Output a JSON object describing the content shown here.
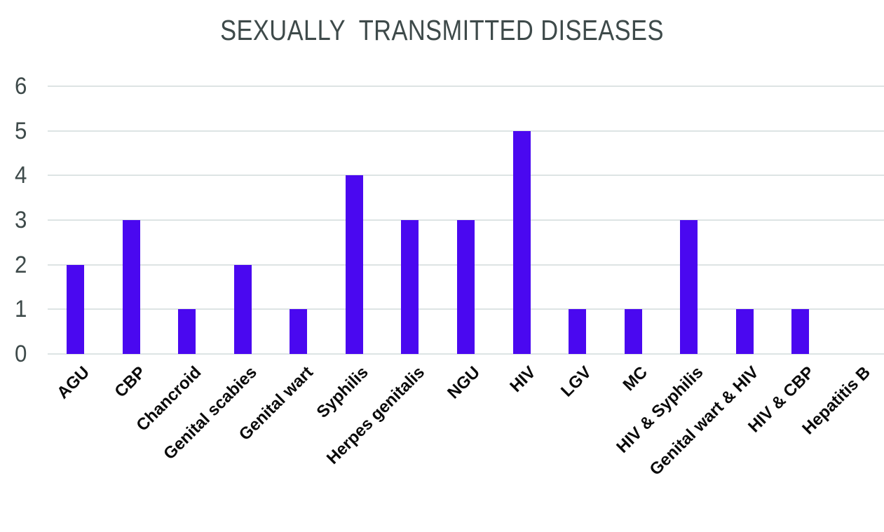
{
  "chart_data": {
    "type": "bar",
    "title": "SEXUALLY  TRANSMITTED DISEASES",
    "categories": [
      "AGU",
      "CBP",
      "Chancroid",
      "Genital scabies",
      "Genital wart",
      "Syphilis",
      "Herpes genitalis",
      "NGU",
      "HIV",
      "LGV",
      "MC",
      "HIV & Syphilis",
      "Genital wart & HIV",
      "HIV & CBP",
      "Hepatitis B"
    ],
    "values": [
      2,
      3,
      1,
      2,
      1,
      4,
      3,
      3,
      5,
      1,
      1,
      3,
      1,
      1,
      0
    ],
    "xlabel": "",
    "ylabel": "",
    "ylim": [
      0,
      6
    ],
    "yticks": [
      0,
      1,
      2,
      3,
      4,
      5,
      6
    ],
    "grid": true,
    "legend": false,
    "colors": {
      "bar": "#4a08f0",
      "gridline": "#dde4e4",
      "title": "#3e4a4a",
      "y_tick_label": "#3e4a4a",
      "x_tick_label": "#0a0a0a",
      "background": "#ffffff"
    }
  }
}
